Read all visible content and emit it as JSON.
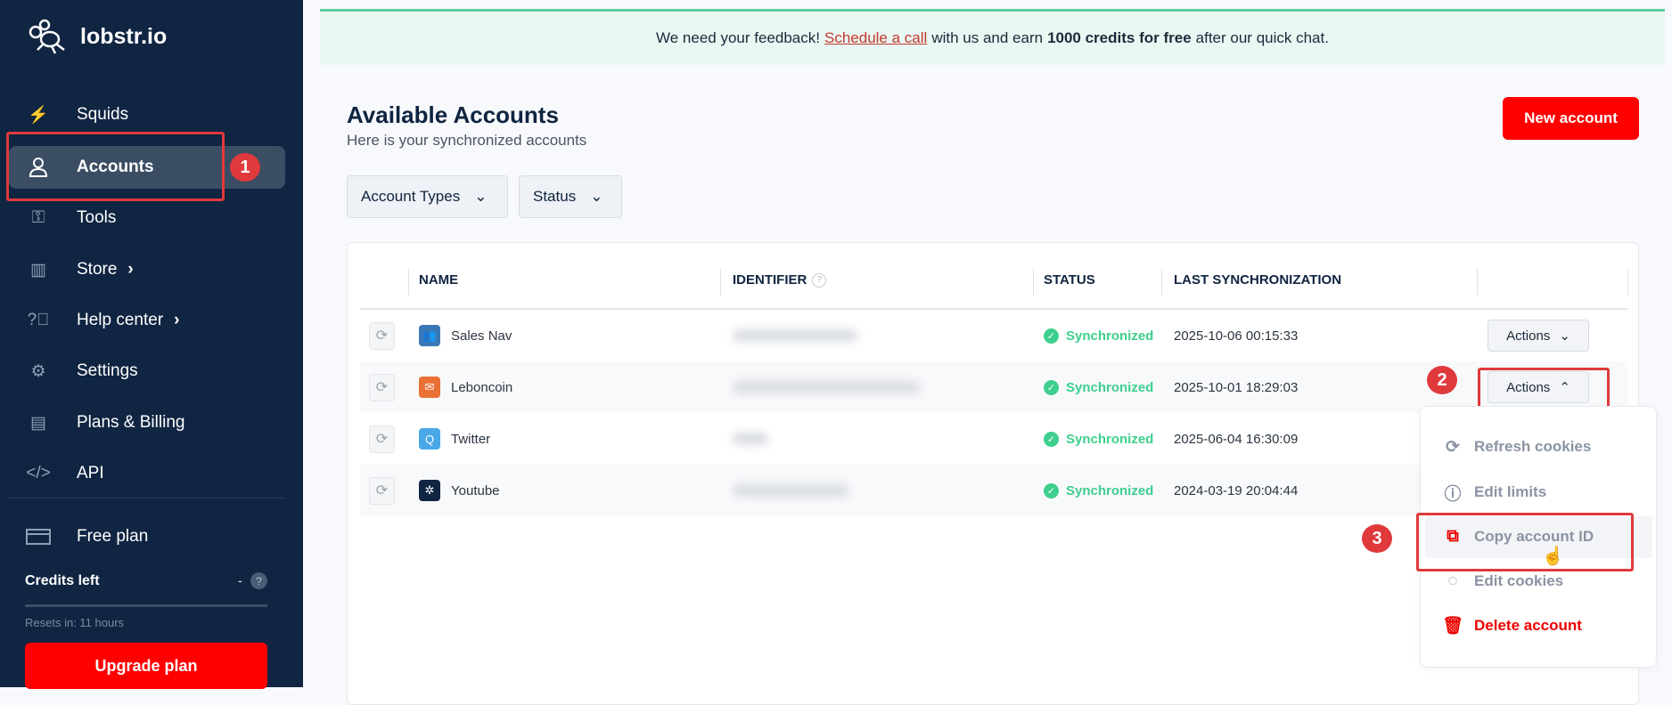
{
  "sidebar": {
    "brand": "lobstr.io",
    "items": [
      {
        "label": "Squids",
        "icon": "lightning-icon"
      },
      {
        "label": "Accounts",
        "icon": "user-icon",
        "active": true
      },
      {
        "label": "Tools",
        "icon": "key-icon"
      },
      {
        "label": "Store",
        "icon": "store-icon",
        "chevron": "›"
      },
      {
        "label": "Help center",
        "icon": "help-icon",
        "chevron": "›"
      },
      {
        "label": "Settings",
        "icon": "gear-icon"
      },
      {
        "label": "Plans & Billing",
        "icon": "receipt-icon"
      },
      {
        "label": "API",
        "icon": "code-icon"
      }
    ],
    "plan": "Free plan",
    "credits_label": "Credits left",
    "credits_value": "-",
    "credits_help": "?",
    "resets": "Resets in: 11 hours",
    "upgrade": "Upgrade plan"
  },
  "banner": {
    "pre": "We need your feedback!",
    "link": "Schedule a call",
    "mid": "with us and earn",
    "bold": "1000 credits for free",
    "post": "after our quick chat."
  },
  "page": {
    "title": "Available Accounts",
    "subtitle": "Here is your synchronized accounts",
    "new_account": "New account"
  },
  "filters": {
    "account_types": "Account Types",
    "status": "Status"
  },
  "table": {
    "headers": {
      "name": "NAME",
      "identifier": "IDENTIFIER",
      "status": "STATUS",
      "last_sync": "LAST SYNCHRONIZATION"
    },
    "rows": [
      {
        "name": "Sales Nav",
        "status": "Synchronized",
        "last_sync": "2025-10-06 00:15:33",
        "actions": "Actions",
        "color": "#3a78b5"
      },
      {
        "name": "Leboncoin",
        "status": "Synchronized",
        "last_sync": "2025-10-01 18:29:03",
        "actions": "Actions",
        "color": "#ea7035"
      },
      {
        "name": "Twitter",
        "status": "Synchronized",
        "last_sync": "2025-06-04 16:30:09",
        "actions": "Actions",
        "color": "#4aa8e8"
      },
      {
        "name": "Youtube",
        "status": "Synchronized",
        "last_sync": "2024-03-19 20:04:44",
        "actions": "Actions",
        "color": "#102542"
      }
    ]
  },
  "menu": {
    "items": [
      "Refresh cookies",
      "Edit limits",
      "Copy account ID",
      "Edit cookies",
      "Delete account"
    ]
  },
  "annotations": [
    "1",
    "2",
    "3"
  ],
  "colors": {
    "sidebar": "#102542",
    "accent_red": "#ff0000",
    "success": "#3ecf8e",
    "annotation": "#e0393c"
  }
}
